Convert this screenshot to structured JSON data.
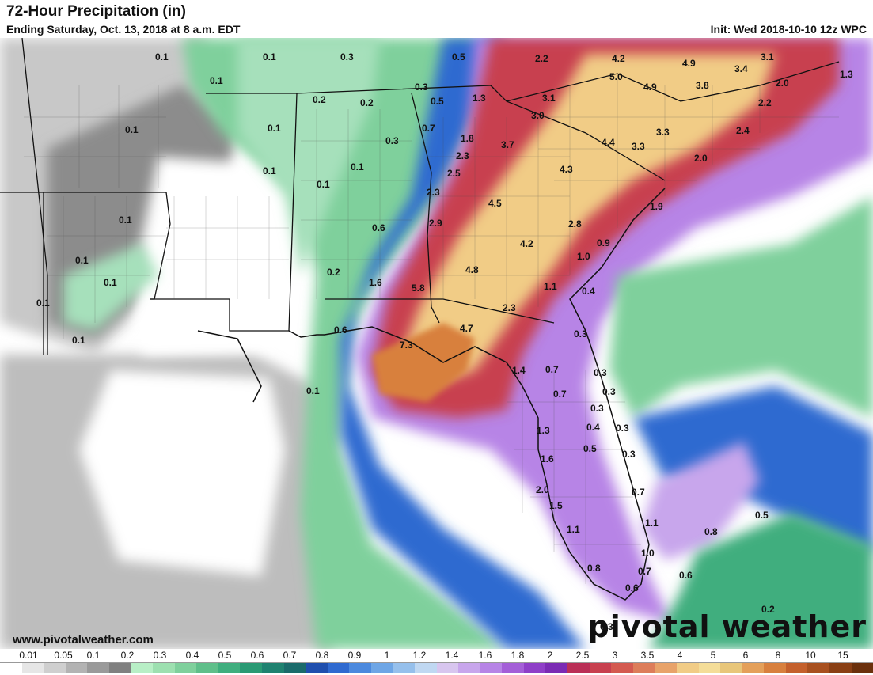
{
  "header": {
    "title": "72-Hour Precipitation (in)",
    "subtitle": "Ending Saturday, Oct. 13, 2018 at 8 a.m. EDT",
    "init": "Init: Wed 2018-10-10 12z WPC"
  },
  "footer": {
    "website": "www.pivotalweather.com",
    "brand": "pivotal weather"
  },
  "legend": {
    "labels": [
      "0.01",
      "0.05",
      "0.1",
      "0.2",
      "0.3",
      "0.4",
      "0.5",
      "0.6",
      "0.7",
      "0.8",
      "0.9",
      "1",
      "1.2",
      "1.4",
      "1.6",
      "1.8",
      "2",
      "2.5",
      "3",
      "3.5",
      "4",
      "5",
      "6",
      "8",
      "10",
      "15"
    ],
    "colors": [
      "#ffffff",
      "#e6e6e6",
      "#cfcfcf",
      "#b3b3b3",
      "#9a9a9a",
      "#808080",
      "#b8efc6",
      "#9de0b0",
      "#7fd09c",
      "#5fbf8a",
      "#3fae7e",
      "#2a9a74",
      "#1f8270",
      "#1a6b6b",
      "#1f4fae",
      "#2f6ad0",
      "#4b89de",
      "#6ea6e6",
      "#96c0ec",
      "#c0d8f2",
      "#d8c6ef",
      "#c8a6ec",
      "#b784e6",
      "#a45fd8",
      "#8f3fc8",
      "#7b2bb4",
      "#ba2f57",
      "#c8404f",
      "#d45a50",
      "#dd7d5a",
      "#e8a36a",
      "#f1cc86",
      "#f4dd98",
      "#e8c67a",
      "#e4a05a",
      "#d8803e",
      "#c4602c",
      "#a8501f",
      "#8a3f14",
      "#6b300c"
    ]
  },
  "labels": [
    {
      "t": "0.1"
    },
    {
      "t": "0.1"
    },
    {
      "t": "0.3"
    },
    {
      "t": "0.5"
    },
    {
      "t": "2.2"
    },
    {
      "t": "4.2"
    },
    {
      "t": "4.9"
    },
    {
      "t": "3.1"
    },
    {
      "t": "0.1"
    },
    {
      "t": "3.4"
    },
    {
      "t": "1.3"
    },
    {
      "t": "5.0"
    },
    {
      "t": "4.9"
    },
    {
      "t": "3.8"
    },
    {
      "t": "2.0"
    },
    {
      "t": "0.2"
    },
    {
      "t": "0.2"
    },
    {
      "t": "0.3"
    },
    {
      "t": "0.5"
    },
    {
      "t": "1.3"
    },
    {
      "t": "3.1"
    },
    {
      "t": "2.2"
    },
    {
      "t": "0.1"
    },
    {
      "t": "0.1"
    },
    {
      "t": "0.7"
    },
    {
      "t": "3.0"
    },
    {
      "t": "0.3"
    },
    {
      "t": "1.8"
    },
    {
      "t": "3.7"
    },
    {
      "t": "3.3"
    },
    {
      "t": "2.4"
    },
    {
      "t": "4.4"
    },
    {
      "t": "3.3"
    },
    {
      "t": "0.1"
    },
    {
      "t": "0.1"
    },
    {
      "t": "2.3"
    },
    {
      "t": "2.5"
    },
    {
      "t": "4.3"
    },
    {
      "t": "2.0"
    },
    {
      "t": "0.1"
    },
    {
      "t": "2.3"
    },
    {
      "t": "4.5"
    },
    {
      "t": "1.9"
    },
    {
      "t": "0.1"
    },
    {
      "t": "0.6"
    },
    {
      "t": "2.9"
    },
    {
      "t": "2.8"
    },
    {
      "t": "0.9"
    },
    {
      "t": "4.2"
    },
    {
      "t": "0.1"
    },
    {
      "t": "1.0"
    },
    {
      "t": "0.2"
    },
    {
      "t": "4.8"
    },
    {
      "t": "0.1"
    },
    {
      "t": "1.6"
    },
    {
      "t": "5.8"
    },
    {
      "t": "1.1"
    },
    {
      "t": "0.1"
    },
    {
      "t": "2.3"
    },
    {
      "t": "0.4"
    },
    {
      "t": "0.6"
    },
    {
      "t": "4.7"
    },
    {
      "t": "0.3"
    },
    {
      "t": "0.1"
    },
    {
      "t": "7.3"
    },
    {
      "t": "1.4"
    },
    {
      "t": "0.7"
    },
    {
      "t": "0.3"
    },
    {
      "t": "0.1"
    },
    {
      "t": "0.7"
    },
    {
      "t": "0.3"
    },
    {
      "t": "0.3"
    },
    {
      "t": "0.4"
    },
    {
      "t": "0.3"
    },
    {
      "t": "1.3"
    },
    {
      "t": "0.5"
    },
    {
      "t": "0.3"
    },
    {
      "t": "1.6"
    },
    {
      "t": "2.0"
    },
    {
      "t": "0.7"
    },
    {
      "t": "1.5"
    },
    {
      "t": "1.1"
    },
    {
      "t": "0.5"
    },
    {
      "t": "0.8"
    },
    {
      "t": "1.1"
    },
    {
      "t": "1.0"
    },
    {
      "t": "0.8"
    },
    {
      "t": "0.7"
    },
    {
      "t": "0.6"
    },
    {
      "t": "0.6"
    },
    {
      "t": "0.2"
    },
    {
      "t": "0.3"
    }
  ]
}
